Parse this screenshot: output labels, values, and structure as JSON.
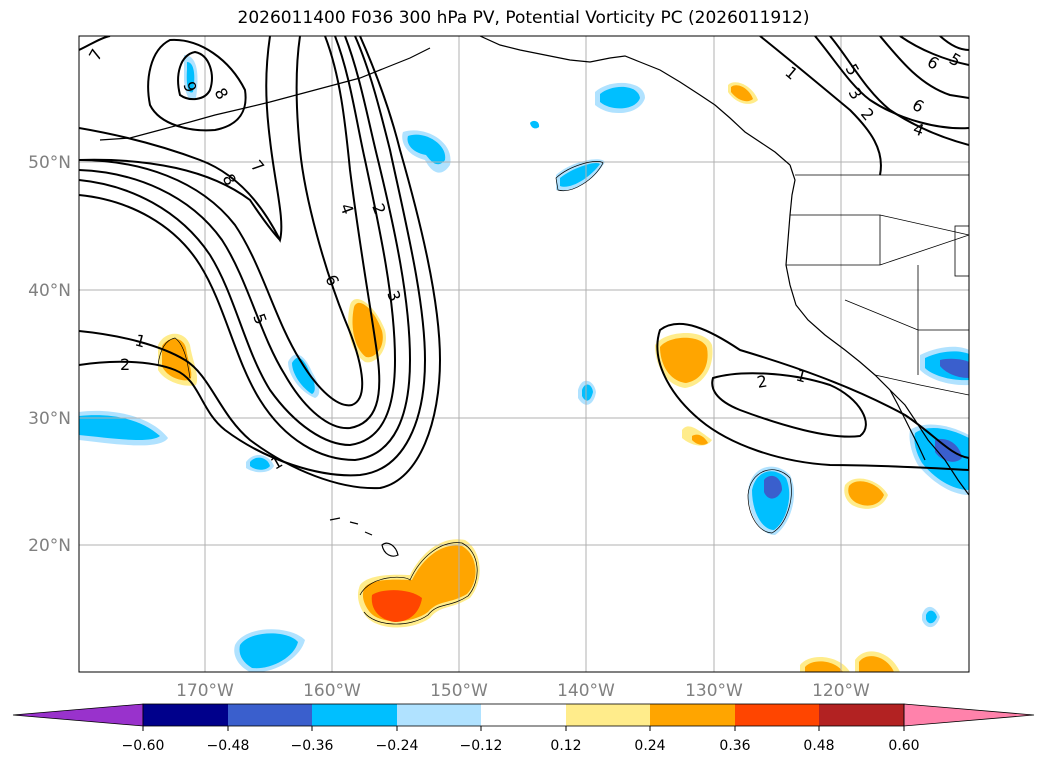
{
  "title": "2026011400 F036 300 hPa PV, Potential Vorticity PC (2026011912)",
  "lat_labels": [
    "50°N",
    "40°N",
    "30°N",
    "20°N"
  ],
  "lon_labels": [
    "170°W",
    "160°W",
    "150°W",
    "140°W",
    "130°W",
    "120°W"
  ],
  "colorbar": {
    "colors": [
      "#9932cc",
      "#00008b",
      "#3a5fcd",
      "#00bfff",
      "#b0e2ff",
      "#ffffff",
      "#ffec8b",
      "#ffa500",
      "#ff4500",
      "#b22222",
      "#ff82ab"
    ],
    "labels": [
      "−0.60",
      "−0.48",
      "−0.36",
      "−0.24",
      "−0.12",
      "0.12",
      "0.24",
      "0.36",
      "0.48",
      "0.60"
    ]
  },
  "contour_labels": [
    "7",
    "8",
    "9",
    "7",
    "8",
    "4",
    "2",
    "6",
    "3",
    "5",
    "1",
    "2",
    "1",
    "1",
    "2",
    "5",
    "3",
    "2",
    "6",
    "4",
    "1",
    "6",
    "5"
  ],
  "colors": {
    "neg_light": "#b0e2ff",
    "neg_mid": "#00bfff",
    "neg_dark": "#3a5fcd",
    "pos_light": "#ffec8b",
    "pos_mid": "#ffa500",
    "pos_dark": "#ff4500"
  }
}
